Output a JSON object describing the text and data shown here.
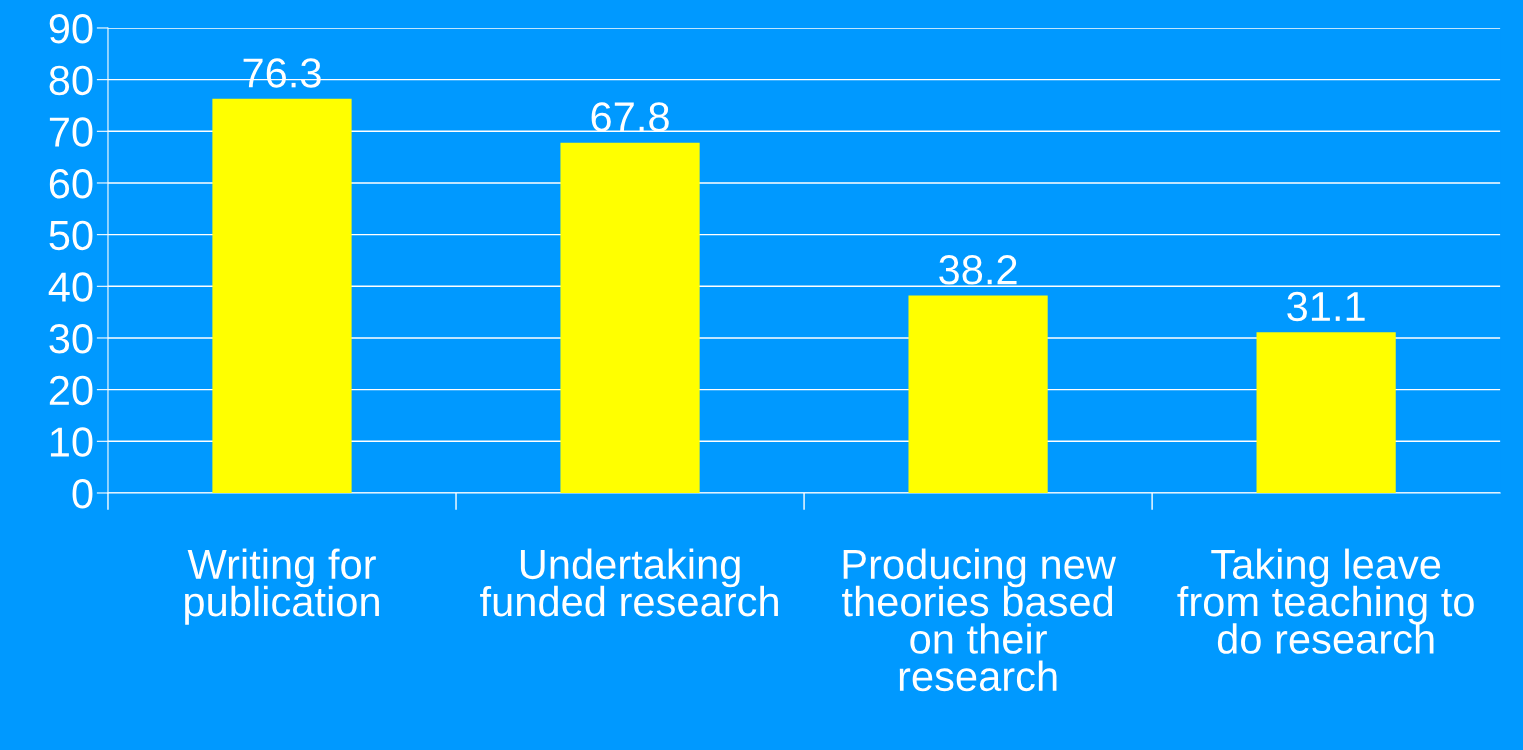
{
  "chart_data": {
    "type": "bar",
    "categories": [
      "Writing for\npublication",
      "Undertaking\nfunded research",
      "Producing new\ntheories based\non their\nresearch",
      "Taking leave\nfrom teaching to\ndo research"
    ],
    "values": [
      76.3,
      67.8,
      38.2,
      31.1
    ],
    "color": "#ffff00",
    "ylim": [
      0,
      90
    ],
    "yticks": [
      0,
      10,
      20,
      30,
      40,
      50,
      60,
      70,
      80,
      90
    ],
    "grid": "y",
    "data_labels": true
  }
}
